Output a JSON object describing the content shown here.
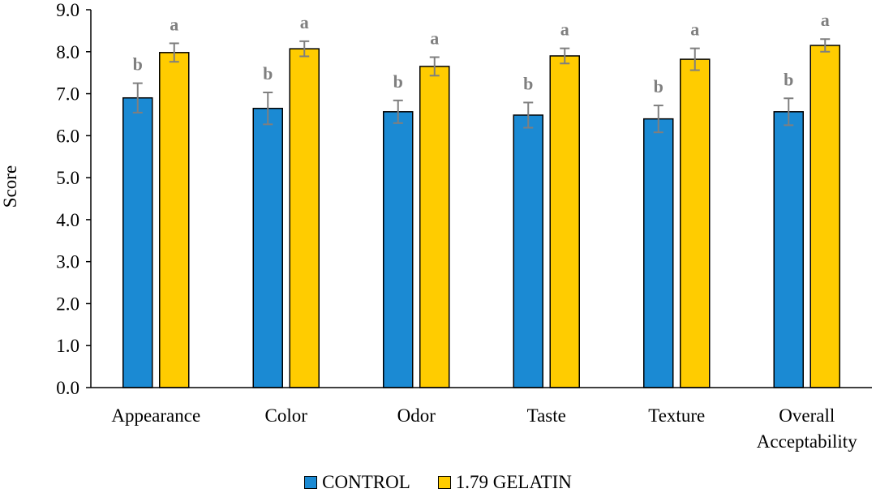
{
  "chart_data": {
    "type": "bar",
    "categories": [
      "Appearance",
      "Color",
      "Odor",
      "Taste",
      "Texture",
      "Overall Acceptability"
    ],
    "category_lines": [
      [
        "Appearance"
      ],
      [
        "Color"
      ],
      [
        "Odor"
      ],
      [
        "Taste"
      ],
      [
        "Texture"
      ],
      [
        "Overall",
        "Acceptability"
      ]
    ],
    "series": [
      {
        "name": "CONTROL",
        "color": "#1b8ad3",
        "values": [
          6.9,
          6.65,
          6.57,
          6.49,
          6.4,
          6.57
        ],
        "errors": [
          0.35,
          0.38,
          0.27,
          0.3,
          0.32,
          0.32
        ],
        "labels": [
          "b",
          "b",
          "b",
          "b",
          "b",
          "b"
        ]
      },
      {
        "name": "1.79 GELATIN",
        "color": "#ffcc00",
        "values": [
          7.98,
          8.07,
          7.65,
          7.9,
          7.82,
          8.15
        ],
        "errors": [
          0.22,
          0.18,
          0.22,
          0.18,
          0.26,
          0.15
        ],
        "labels": [
          "a",
          "a",
          "a",
          "a",
          "a",
          "a"
        ]
      }
    ],
    "ylabel": "Score",
    "ylim": [
      0,
      9
    ],
    "yticks": [
      "0.0",
      "1.0",
      "2.0",
      "3.0",
      "4.0",
      "5.0",
      "6.0",
      "7.0",
      "8.0",
      "9.0"
    ],
    "grid": false,
    "legend_position": "bottom"
  }
}
